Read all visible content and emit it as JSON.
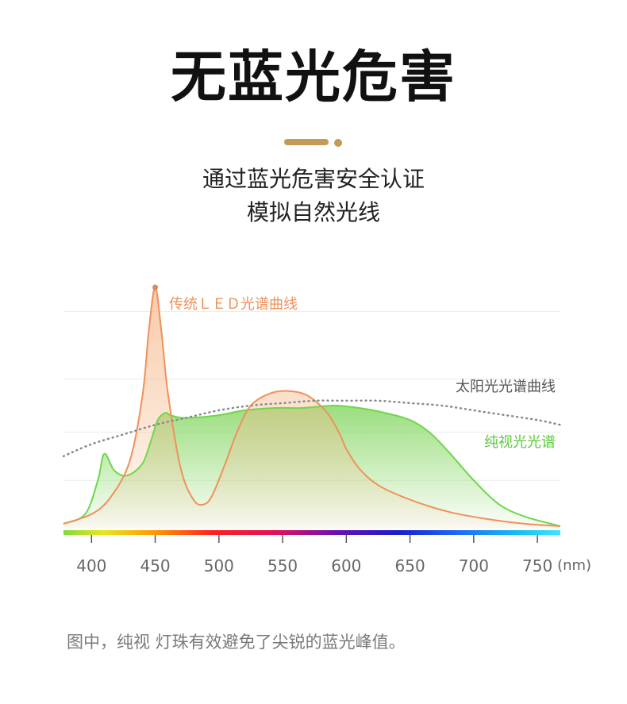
{
  "header": {
    "title": "无蓝光危害",
    "subtitle_line1": "通过蓝光危害安全认证",
    "subtitle_line2": "模拟自然光线"
  },
  "colors": {
    "accent": "#c49a56",
    "led_curve": "#f0915a",
    "led_fill": "#f7c7a0",
    "pure_curve": "#6cd94a",
    "pure_fill": "#9fe27e",
    "sun_curve": "#8a8a8a",
    "grid": "#ececec"
  },
  "chart_data": {
    "type": "line",
    "x_unit": "(nm)",
    "x_ticks": [
      400,
      450,
      500,
      550,
      600,
      650,
      700,
      750
    ],
    "xlim": [
      378,
      768
    ],
    "ylim": [
      0,
      1
    ],
    "y_ticks_shown": false,
    "grid": "horizontal",
    "spectrum_bar": "rainbow",
    "series": [
      {
        "name": "传统ＬＥＤ光谱曲线",
        "style": "solid-filled",
        "x": [
          378,
          400,
          415,
          430,
          440,
          445,
          450,
          455,
          460,
          470,
          480,
          488,
          495,
          505,
          515,
          525,
          540,
          555,
          570,
          585,
          595,
          600,
          610,
          625,
          650,
          680,
          710,
          740,
          768
        ],
        "y": [
          0.02,
          0.06,
          0.13,
          0.28,
          0.55,
          0.82,
          1.0,
          0.81,
          0.56,
          0.25,
          0.12,
          0.1,
          0.14,
          0.27,
          0.41,
          0.51,
          0.56,
          0.57,
          0.55,
          0.48,
          0.39,
          0.33,
          0.25,
          0.18,
          0.12,
          0.07,
          0.04,
          0.02,
          0.01
        ]
      },
      {
        "name": "太阳光光谱曲线",
        "style": "dotted",
        "x": [
          378,
          400,
          425,
          450,
          475,
          500,
          525,
          550,
          575,
          600,
          625,
          650,
          675,
          700,
          725,
          750,
          768
        ],
        "y": [
          0.3,
          0.35,
          0.39,
          0.43,
          0.46,
          0.49,
          0.51,
          0.52,
          0.53,
          0.53,
          0.53,
          0.52,
          0.51,
          0.49,
          0.47,
          0.45,
          0.43
        ]
      },
      {
        "name": "纯视光光谱",
        "style": "solid-gradient",
        "x": [
          378,
          395,
          405,
          410,
          418,
          428,
          440,
          447,
          452,
          458,
          462,
          470,
          480,
          500,
          520,
          545,
          565,
          590,
          610,
          630,
          650,
          665,
          680,
          700,
          720,
          740,
          768
        ],
        "y": [
          0.02,
          0.06,
          0.2,
          0.31,
          0.24,
          0.22,
          0.27,
          0.37,
          0.45,
          0.48,
          0.47,
          0.46,
          0.46,
          0.47,
          0.49,
          0.5,
          0.5,
          0.51,
          0.5,
          0.48,
          0.45,
          0.4,
          0.32,
          0.2,
          0.1,
          0.05,
          0.01
        ]
      }
    ]
  },
  "caption": "图中，纯视 灯珠有效避免了尖锐的蓝光峰值。"
}
